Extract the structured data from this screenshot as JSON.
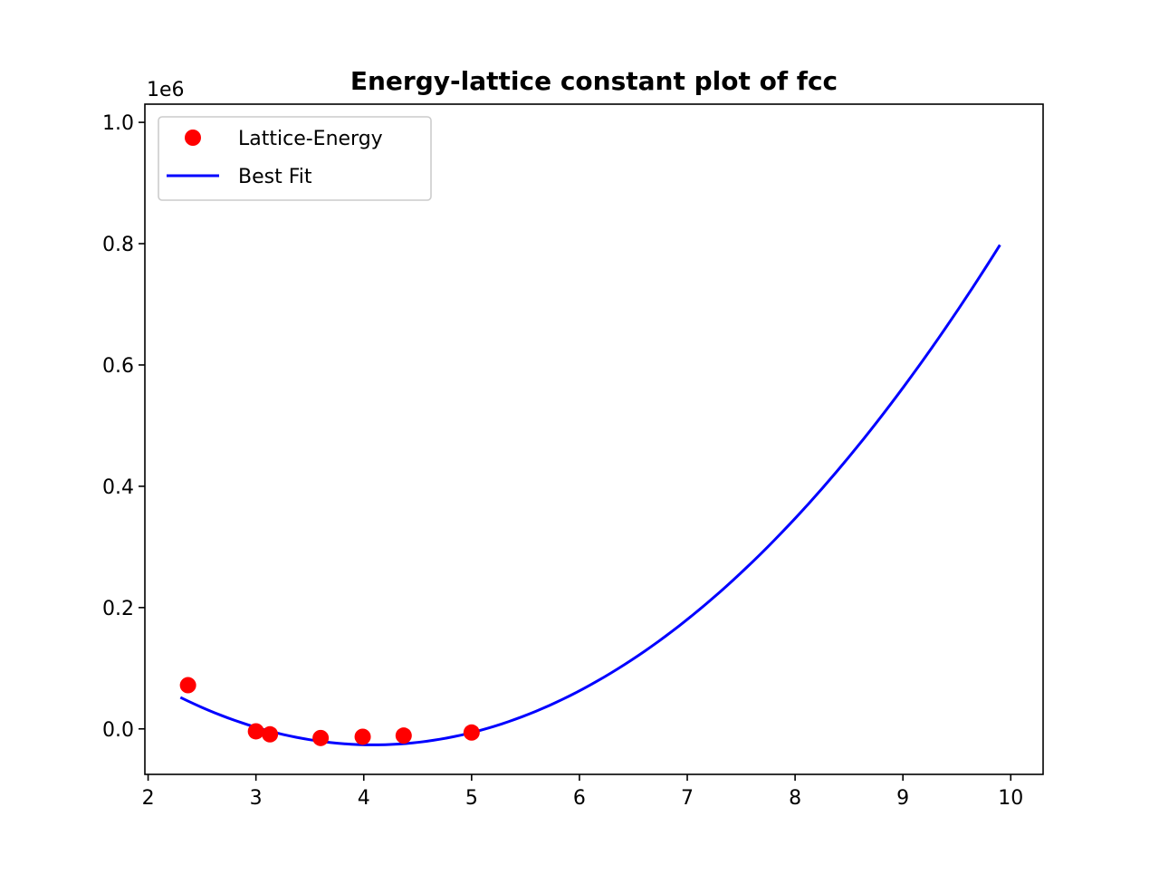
{
  "chart_data": {
    "type": "line",
    "title": "Energy-lattice constant plot of fcc",
    "xlabel": "",
    "ylabel": "",
    "y_offset_label": "1e6",
    "xlim": [
      1.97,
      10.3
    ],
    "ylim": [
      -75000,
      1030000
    ],
    "x_ticks": [
      2,
      3,
      4,
      5,
      6,
      7,
      8,
      9,
      10
    ],
    "x_tick_labels": [
      "2",
      "3",
      "4",
      "5",
      "6",
      "7",
      "8",
      "9",
      "10"
    ],
    "y_ticks": [
      0,
      200000,
      400000,
      600000,
      800000,
      1000000
    ],
    "y_tick_labels": [
      "0.0",
      "0.2",
      "0.4",
      "0.6",
      "0.8",
      "1.0"
    ],
    "grid": false,
    "legend_position": "upper-left",
    "series": [
      {
        "name": "Lattice-Energy",
        "kind": "scatter",
        "color": "#ff0000",
        "x": [
          2.37,
          3.0,
          3.13,
          3.6,
          3.99,
          4.37,
          5.0
        ],
        "y": [
          72000,
          -4000,
          -9000,
          -15000,
          -13000,
          -11000,
          -6000
        ]
      },
      {
        "name": "Best Fit",
        "kind": "line",
        "color": "#0000ff",
        "fit": {
          "form": "quadratic",
          "a": 24415,
          "b": -199700,
          "c": 382000,
          "x_start": 2.3,
          "x_end": 9.9
        }
      }
    ]
  }
}
